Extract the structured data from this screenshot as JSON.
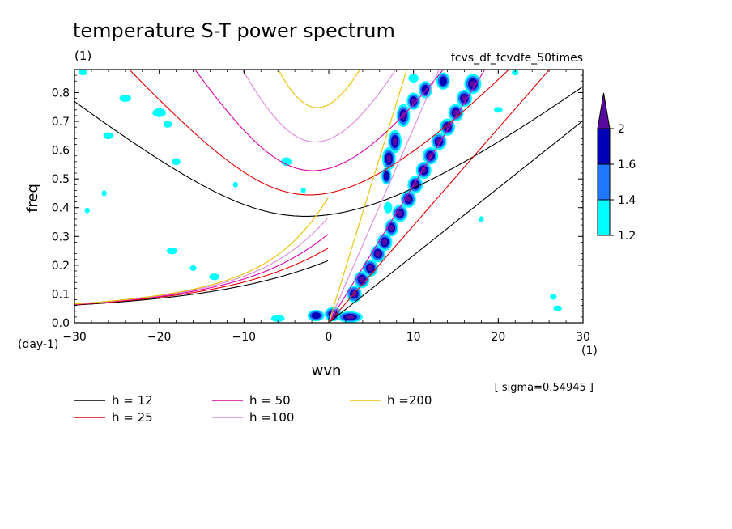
{
  "chart_data": {
    "type": "heatmap",
    "title": "temperature S-T power spectrum",
    "subtitle_left": "(1)",
    "subtitle_right": "fcvs_df_fcvdfe_50times",
    "xlabel": "wvn",
    "ylabel": "freq",
    "x_unit": "(1)",
    "y_unit": "(day-1)",
    "xlim": [
      -30,
      30
    ],
    "ylim": [
      0,
      0.88
    ],
    "xticks": [
      -30,
      -20,
      -10,
      0,
      10,
      20,
      30
    ],
    "xtick_labels": [
      "−30",
      "−20",
      "−10",
      "0",
      "10",
      "20",
      "30"
    ],
    "yticks": [
      0.0,
      0.1,
      0.2,
      0.3,
      0.4,
      0.5,
      0.6,
      0.7,
      0.8
    ],
    "ytick_labels": [
      "0.0",
      "0.1",
      "0.2",
      "0.3",
      "0.4",
      "0.5",
      "0.6",
      "0.7",
      "0.8"
    ],
    "sigma_note": "[ sigma=0.54945 ]",
    "colorbar": {
      "levels": [
        1.2,
        1.4,
        1.6,
        2
      ],
      "labels": [
        "1.2",
        "1.4",
        "1.6",
        "2"
      ],
      "colors": [
        "#00ffff",
        "#1e78ff",
        "#0000b4",
        "#5a0aa0"
      ]
    },
    "dispersion_curves": [
      {
        "label": "h = 12",
        "h": 12,
        "color": "#000000"
      },
      {
        "label": "h = 25",
        "h": 25,
        "color": "#e00000"
      },
      {
        "label": "h = 50",
        "h": 50,
        "color": "#dd00aa"
      },
      {
        "label": "h =100",
        "h": 100,
        "color": "#dd88dd"
      },
      {
        "label": "h =200",
        "h": 200,
        "color": "#e8c000"
      }
    ],
    "blobs": [
      {
        "x": 0.5,
        "y": 0.03,
        "rx": 1.0,
        "ry": 0.025,
        "level": 3
      },
      {
        "x": 2.5,
        "y": 0.02,
        "rx": 1.5,
        "ry": 0.02,
        "level": 3
      },
      {
        "x": -1.5,
        "y": 0.025,
        "rx": 1.0,
        "ry": 0.02,
        "level": 2
      },
      {
        "x": 3.0,
        "y": 0.1,
        "rx": 0.9,
        "ry": 0.03,
        "level": 3
      },
      {
        "x": 3.9,
        "y": 0.15,
        "rx": 0.9,
        "ry": 0.03,
        "level": 3
      },
      {
        "x": 4.9,
        "y": 0.19,
        "rx": 0.9,
        "ry": 0.03,
        "level": 3
      },
      {
        "x": 5.8,
        "y": 0.24,
        "rx": 0.9,
        "ry": 0.03,
        "level": 3
      },
      {
        "x": 6.6,
        "y": 0.28,
        "rx": 0.9,
        "ry": 0.03,
        "level": 3
      },
      {
        "x": 7.4,
        "y": 0.33,
        "rx": 0.8,
        "ry": 0.03,
        "level": 3
      },
      {
        "x": 8.4,
        "y": 0.38,
        "rx": 0.9,
        "ry": 0.03,
        "level": 3
      },
      {
        "x": 9.4,
        "y": 0.43,
        "rx": 0.9,
        "ry": 0.03,
        "level": 3
      },
      {
        "x": 10.2,
        "y": 0.48,
        "rx": 0.9,
        "ry": 0.03,
        "level": 3
      },
      {
        "x": 11.2,
        "y": 0.53,
        "rx": 0.9,
        "ry": 0.03,
        "level": 3
      },
      {
        "x": 12.0,
        "y": 0.58,
        "rx": 0.9,
        "ry": 0.03,
        "level": 3
      },
      {
        "x": 13.0,
        "y": 0.63,
        "rx": 0.9,
        "ry": 0.03,
        "level": 3
      },
      {
        "x": 14.0,
        "y": 0.68,
        "rx": 0.9,
        "ry": 0.03,
        "level": 3
      },
      {
        "x": 15.0,
        "y": 0.73,
        "rx": 0.9,
        "ry": 0.03,
        "level": 3
      },
      {
        "x": 16.0,
        "y": 0.78,
        "rx": 0.9,
        "ry": 0.03,
        "level": 3
      },
      {
        "x": 17.0,
        "y": 0.83,
        "rx": 1.0,
        "ry": 0.035,
        "level": 3
      },
      {
        "x": 7.1,
        "y": 0.57,
        "rx": 0.8,
        "ry": 0.04,
        "level": 3
      },
      {
        "x": 7.8,
        "y": 0.63,
        "rx": 0.8,
        "ry": 0.04,
        "level": 3
      },
      {
        "x": 8.8,
        "y": 0.72,
        "rx": 0.8,
        "ry": 0.04,
        "level": 3
      },
      {
        "x": 10.0,
        "y": 0.77,
        "rx": 0.8,
        "ry": 0.03,
        "level": 3
      },
      {
        "x": 11.4,
        "y": 0.81,
        "rx": 0.8,
        "ry": 0.03,
        "level": 2
      },
      {
        "x": 13.5,
        "y": 0.84,
        "rx": 0.8,
        "ry": 0.03,
        "level": 2
      },
      {
        "x": 6.8,
        "y": 0.51,
        "rx": 0.6,
        "ry": 0.03,
        "level": 2
      },
      {
        "x": 7.0,
        "y": 0.4,
        "rx": 0.5,
        "ry": 0.02,
        "level": 0
      },
      {
        "x": -24,
        "y": 0.78,
        "rx": 0.7,
        "ry": 0.012,
        "level": 0
      },
      {
        "x": -26,
        "y": 0.65,
        "rx": 0.6,
        "ry": 0.012,
        "level": 0
      },
      {
        "x": -19,
        "y": 0.69,
        "rx": 0.5,
        "ry": 0.012,
        "level": 0
      },
      {
        "x": -18,
        "y": 0.56,
        "rx": 0.5,
        "ry": 0.012,
        "level": 0
      },
      {
        "x": -5,
        "y": 0.56,
        "rx": 0.6,
        "ry": 0.015,
        "level": 0
      },
      {
        "x": -18.5,
        "y": 0.25,
        "rx": 0.6,
        "ry": 0.012,
        "level": 0
      },
      {
        "x": -13.5,
        "y": 0.16,
        "rx": 0.6,
        "ry": 0.012,
        "level": 0
      },
      {
        "x": -16,
        "y": 0.19,
        "rx": 0.4,
        "ry": 0.01,
        "level": 0
      },
      {
        "x": -20,
        "y": 0.73,
        "rx": 0.8,
        "ry": 0.015,
        "level": 0
      },
      {
        "x": -29,
        "y": 0.87,
        "rx": 0.5,
        "ry": 0.01,
        "level": 0
      },
      {
        "x": -26.5,
        "y": 0.45,
        "rx": 0.3,
        "ry": 0.01,
        "level": 0
      },
      {
        "x": -28.5,
        "y": 0.39,
        "rx": 0.3,
        "ry": 0.01,
        "level": 0
      },
      {
        "x": 10,
        "y": 0.85,
        "rx": 0.6,
        "ry": 0.015,
        "level": 0
      },
      {
        "x": 20,
        "y": 0.74,
        "rx": 0.5,
        "ry": 0.01,
        "level": 0
      },
      {
        "x": 27,
        "y": 0.05,
        "rx": 0.5,
        "ry": 0.01,
        "level": 0
      },
      {
        "x": 26.5,
        "y": 0.09,
        "rx": 0.4,
        "ry": 0.01,
        "level": 0
      },
      {
        "x": -6,
        "y": 0.015,
        "rx": 0.8,
        "ry": 0.012,
        "level": 0
      },
      {
        "x": 22,
        "y": 0.87,
        "rx": 0.4,
        "ry": 0.01,
        "level": 0
      },
      {
        "x": 18,
        "y": 0.36,
        "rx": 0.3,
        "ry": 0.01,
        "level": 0
      },
      {
        "x": -3,
        "y": 0.46,
        "rx": 0.3,
        "ry": 0.01,
        "level": 0
      },
      {
        "x": -11,
        "y": 0.48,
        "rx": 0.3,
        "ry": 0.01,
        "level": 0
      }
    ]
  }
}
